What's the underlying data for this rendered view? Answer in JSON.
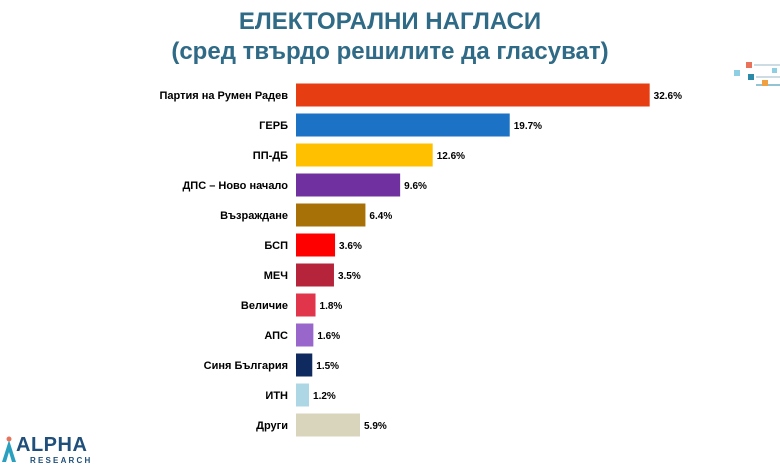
{
  "header": {
    "title": "ЕЛЕКТОРАЛНИ НАГЛАСИ",
    "subtitle": "(сред твърдо решилите да гласуват)"
  },
  "logo": {
    "name": "ALPHA",
    "sub": "RESEARCH"
  },
  "chart_data": {
    "type": "bar",
    "orientation": "horizontal",
    "title": "ЕЛЕКТОРАЛНИ НАГЛАСИ",
    "subtitle": "(сред твърдо решилите да гласуват)",
    "categories": [
      "Партия на Румен Радев",
      "ГЕРБ",
      "ПП-ДБ",
      "ДПС – Ново начало",
      "Възраждане",
      "БСП",
      "МЕЧ",
      "Величие",
      "АПС",
      "Синя България",
      "ИТН",
      "Други"
    ],
    "values": [
      32.6,
      19.7,
      12.6,
      9.6,
      6.4,
      3.6,
      3.5,
      1.8,
      1.6,
      1.5,
      1.2,
      5.9
    ],
    "value_labels": [
      "32.6%",
      "19.7%",
      "12.6%",
      "9.6%",
      "6.4%",
      "3.6%",
      "3.5%",
      "1.8%",
      "1.6%",
      "1.5%",
      "1.2%",
      "5.9%"
    ],
    "colors": [
      "#e63d12",
      "#1c72c4",
      "#ffc000",
      "#7030a0",
      "#a87108",
      "#ff0000",
      "#b5243a",
      "#e0354a",
      "#9966cc",
      "#0f2a5e",
      "#aed7e6",
      "#d9d5bc"
    ],
    "xlim": [
      0,
      33
    ],
    "grid": false,
    "legend": "none"
  }
}
